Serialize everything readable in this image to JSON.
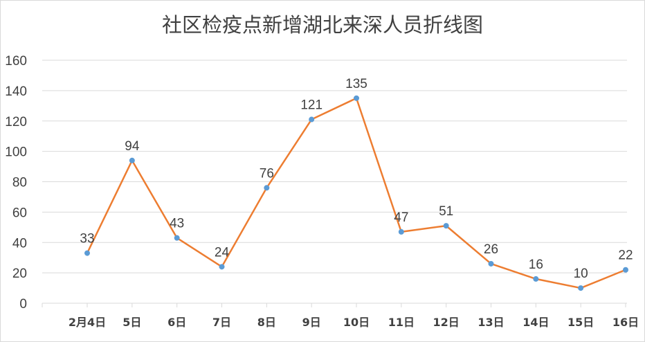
{
  "chart_data": {
    "type": "line",
    "title": "社区检疫点新增湖北来深人员折线图",
    "categories": [
      "2月4日",
      "5日",
      "6日",
      "7日",
      "8日",
      "9日",
      "10日",
      "11日",
      "12日",
      "13日",
      "14日",
      "15日",
      "16日"
    ],
    "series": [
      {
        "values": [
          33,
          94,
          43,
          24,
          76,
          121,
          135,
          47,
          51,
          26,
          16,
          10,
          22
        ]
      }
    ],
    "data_labels": [
      "33",
      "94",
      "43",
      "24",
      "76",
      "121",
      "135",
      "47",
      "51",
      "26",
      "16",
      "10",
      "22"
    ],
    "y_ticks": [
      "0",
      "20",
      "40",
      "60",
      "80",
      "100",
      "120",
      "140",
      "160"
    ],
    "ylim": [
      0,
      160
    ],
    "grid": true,
    "legend": false,
    "colors": {
      "line": "#ED7D31",
      "marker": "#5B9BD5",
      "grid": "#d9d9d9",
      "text": "#404040"
    }
  }
}
